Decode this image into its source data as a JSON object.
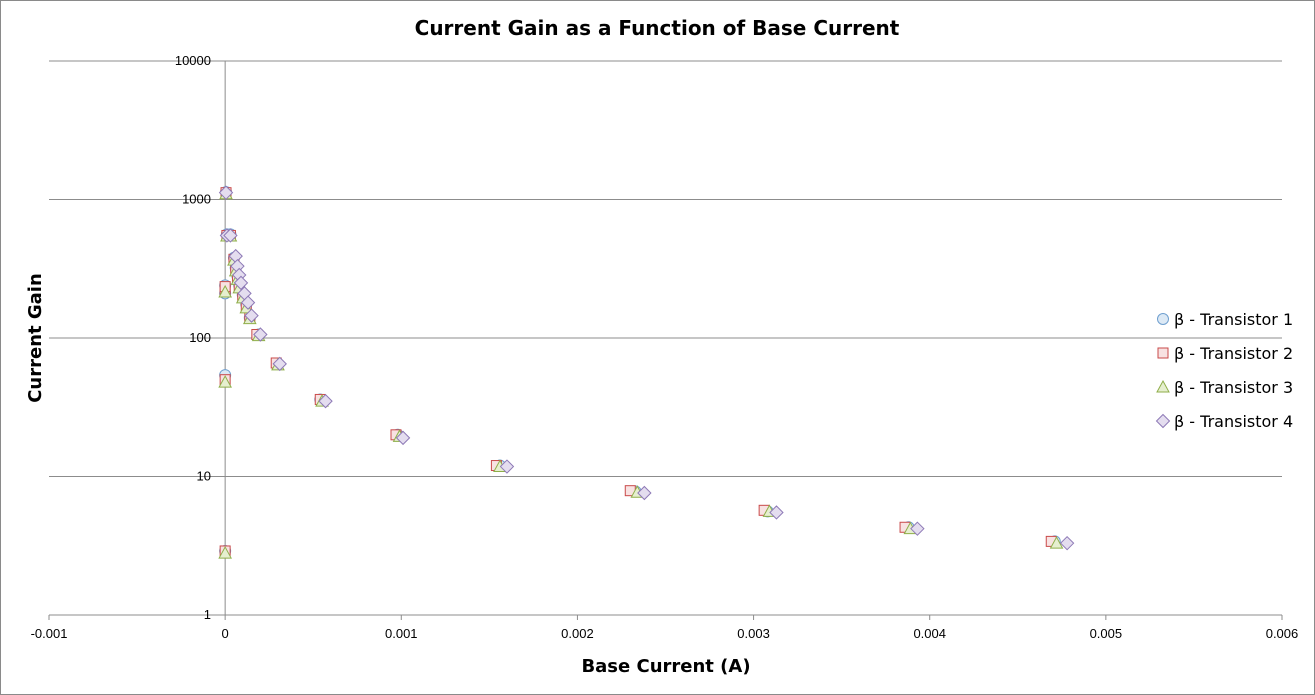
{
  "chart_data": {
    "type": "scatter",
    "title": "Current Gain as a Function of Base Current",
    "xlabel": "Base Current (A)",
    "ylabel": "Current Gain",
    "xlim": [
      -0.001,
      0.006
    ],
    "ylim": [
      1,
      10000
    ],
    "yscale": "log",
    "x_ticks": [
      "-0.001",
      "0",
      "0.001",
      "0.002",
      "0.003",
      "0.004",
      "0.005",
      "0.006"
    ],
    "y_ticks": [
      "1",
      "10",
      "100",
      "1000",
      "10000"
    ],
    "grid": "horizontal",
    "legend_position": "right",
    "series": [
      {
        "name": "β - Transistor 1",
        "marker": "circle",
        "fill": "#dce9f5",
        "stroke": "#6f9fcf",
        "points": [
          [
            0.0,
            2.9
          ],
          [
            0.0,
            54
          ],
          [
            0.0,
            210
          ],
          [
            0.0,
            240
          ],
          [
            5e-06,
            1130
          ],
          [
            1e-05,
            560
          ],
          [
            3e-05,
            560
          ],
          [
            5e-05,
            380
          ],
          [
            6e-05,
            320
          ],
          [
            7e-05,
            280
          ],
          [
            8e-05,
            240
          ],
          [
            0.0001,
            205
          ],
          [
            0.00012,
            175
          ],
          [
            0.00014,
            140
          ],
          [
            0.00019,
            106
          ],
          [
            0.0003,
            65
          ],
          [
            0.00054,
            36
          ],
          [
            0.00098,
            20
          ],
          [
            0.00156,
            12
          ],
          [
            0.00233,
            7.8
          ],
          [
            0.00308,
            5.6
          ],
          [
            0.00388,
            4.3
          ],
          [
            0.00471,
            3.4
          ]
        ]
      },
      {
        "name": "β - Transistor 2",
        "marker": "square",
        "fill": "#f8e2e2",
        "stroke": "#c94a4a",
        "points": [
          [
            0.0,
            2.9
          ],
          [
            0.0,
            50
          ],
          [
            0.0,
            220
          ],
          [
            0.0,
            235
          ],
          [
            5e-06,
            1120
          ],
          [
            1e-05,
            550
          ],
          [
            3e-05,
            550
          ],
          [
            5e-05,
            370
          ],
          [
            6e-05,
            310
          ],
          [
            7e-05,
            270
          ],
          [
            8e-05,
            235
          ],
          [
            0.0001,
            200
          ],
          [
            0.00012,
            170
          ],
          [
            0.00014,
            140
          ],
          [
            0.00018,
            106
          ],
          [
            0.00029,
            66
          ],
          [
            0.00054,
            36
          ],
          [
            0.00097,
            20
          ],
          [
            0.00154,
            12
          ],
          [
            0.0023,
            7.9
          ],
          [
            0.00306,
            5.7
          ],
          [
            0.00386,
            4.3
          ],
          [
            0.00469,
            3.4
          ]
        ]
      },
      {
        "name": "β - Transistor 3",
        "marker": "triangle",
        "fill": "#e6efcf",
        "stroke": "#8fae4a",
        "points": [
          [
            0.0,
            2.8
          ],
          [
            0.0,
            48
          ],
          [
            0.0,
            215
          ],
          [
            5e-06,
            1100
          ],
          [
            1e-05,
            545
          ],
          [
            3e-05,
            545
          ],
          [
            5e-05,
            365
          ],
          [
            6e-05,
            305
          ],
          [
            7e-05,
            265
          ],
          [
            8e-05,
            230
          ],
          [
            0.0001,
            195
          ],
          [
            0.00012,
            165
          ],
          [
            0.00014,
            138
          ],
          [
            0.00019,
            104
          ],
          [
            0.0003,
            64
          ],
          [
            0.00055,
            35
          ],
          [
            0.00099,
            19.5
          ],
          [
            0.00156,
            11.8
          ],
          [
            0.00234,
            7.7
          ],
          [
            0.00309,
            5.6
          ],
          [
            0.00389,
            4.2
          ],
          [
            0.00472,
            3.3
          ]
        ]
      },
      {
        "name": "β - Transistor 4",
        "marker": "diamond",
        "fill": "#e4ddef",
        "stroke": "#8d79b6",
        "points": [
          [
            5e-06,
            1120
          ],
          [
            1e-05,
            550
          ],
          [
            3e-05,
            550
          ],
          [
            6e-05,
            390
          ],
          [
            7e-05,
            330
          ],
          [
            8e-05,
            285
          ],
          [
            9e-05,
            250
          ],
          [
            0.00011,
            210
          ],
          [
            0.00013,
            180
          ],
          [
            0.00015,
            145
          ],
          [
            0.0002,
            106
          ],
          [
            0.00031,
            65
          ],
          [
            0.00057,
            35
          ],
          [
            0.00101,
            19
          ],
          [
            0.0016,
            11.8
          ],
          [
            0.00238,
            7.6
          ],
          [
            0.00313,
            5.5
          ],
          [
            0.00393,
            4.2
          ],
          [
            0.00478,
            3.3
          ]
        ]
      }
    ]
  }
}
